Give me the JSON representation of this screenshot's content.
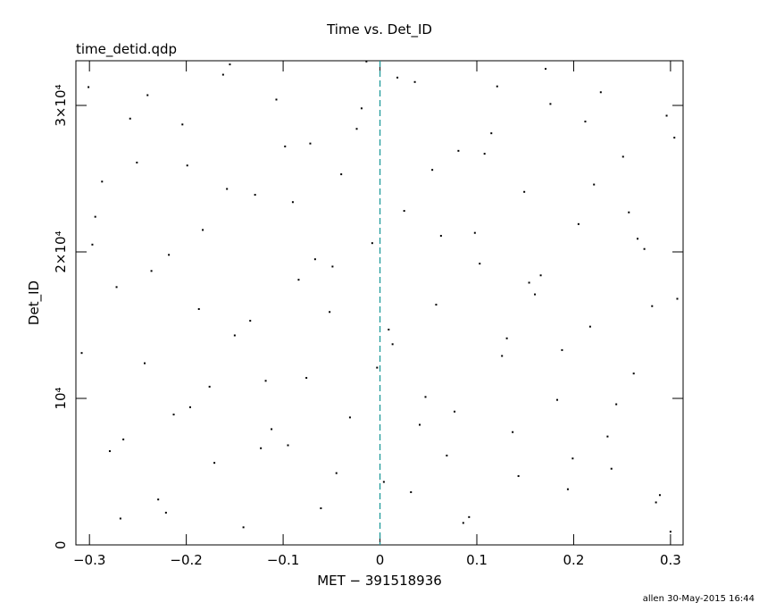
{
  "chart_data": {
    "type": "scatter",
    "title": "Time vs. Det_ID",
    "subtitle": "time_detid.qdp",
    "xlabel": "MET − 391518936",
    "ylabel": "Det_ID",
    "footer": "allen 30-May-2015 16:44",
    "color": "#000000",
    "xlim": [
      -0.314,
      0.313
    ],
    "ylim": [
      0,
      33050
    ],
    "xticks": [
      {
        "value": -0.3,
        "label": "−0.3"
      },
      {
        "value": -0.2,
        "label": "−0.2"
      },
      {
        "value": -0.1,
        "label": "−0.1"
      },
      0,
      0.1,
      0.2,
      0.3
    ],
    "yticks": [
      0,
      {
        "value": 10000,
        "label": "10⁴"
      },
      {
        "value": 20000,
        "label": "2×10⁴"
      },
      {
        "value": 30000,
        "label": "3×10⁴"
      }
    ],
    "vline": {
      "x": 0,
      "color": "#1f9a9a"
    },
    "x": [
      -0.301,
      -0.287,
      -0.272,
      -0.265,
      -0.251,
      -0.243,
      -0.229,
      -0.218,
      -0.204,
      -0.196,
      -0.183,
      -0.171,
      -0.162,
      -0.15,
      -0.141,
      -0.129,
      -0.118,
      -0.107,
      -0.095,
      -0.084,
      -0.072,
      -0.061,
      -0.052,
      -0.04,
      -0.031,
      -0.019,
      -0.008,
      0.004,
      0.013,
      0.025,
      0.036,
      0.047,
      0.058,
      0.069,
      0.081,
      0.092,
      0.103,
      0.115,
      0.126,
      0.137,
      0.149,
      0.16,
      0.171,
      0.183,
      0.194,
      0.205,
      0.217,
      0.228,
      0.239,
      0.251,
      0.262,
      0.273,
      0.285,
      0.296,
      0.307,
      -0.308,
      -0.294,
      -0.279,
      -0.258,
      -0.236,
      -0.221,
      -0.199,
      -0.176,
      -0.155,
      -0.134,
      -0.112,
      -0.09,
      -0.067,
      -0.045,
      -0.024,
      -0.003,
      0.018,
      0.041,
      0.063,
      0.086,
      0.108,
      0.131,
      0.154,
      0.176,
      0.199,
      0.221,
      0.244,
      0.266,
      0.289,
      0.304,
      -0.297,
      -0.268,
      -0.24,
      -0.213,
      -0.187,
      -0.158,
      -0.123,
      -0.098,
      -0.076,
      -0.049,
      -0.014,
      0.009,
      0.032,
      0.054,
      0.077,
      0.098,
      0.121,
      0.143,
      0.166,
      0.188,
      0.212,
      0.235,
      0.257,
      0.281,
      0.3
    ],
    "values": [
      31250,
      24800,
      17600,
      7200,
      26100,
      12400,
      3100,
      19800,
      28700,
      9400,
      21500,
      5600,
      32100,
      14300,
      1200,
      23900,
      11200,
      30400,
      6800,
      18100,
      27400,
      2500,
      15900,
      25300,
      8700,
      29800,
      20600,
      4300,
      13700,
      22800,
      31600,
      10100,
      16400,
      6100,
      26900,
      1900,
      19200,
      28100,
      12900,
      7700,
      24100,
      17100,
      32500,
      9900,
      3800,
      21900,
      14900,
      30900,
      5200,
      26500,
      11700,
      20200,
      2900,
      29300,
      16800,
      13100,
      22400,
      6400,
      29100,
      18700,
      2200,
      25900,
      10800,
      32800,
      15300,
      7900,
      23400,
      19500,
      4900,
      28400,
      12100,
      31900,
      8200,
      21100,
      1500,
      26700,
      14100,
      17900,
      30100,
      5900,
      24600,
      9600,
      20900,
      3400,
      27800,
      20500,
      1800,
      30700,
      8900,
      16100,
      24300,
      6600,
      27200,
      11400,
      19000,
      33000,
      14700,
      3600,
      25600,
      9100,
      21300,
      31300,
      4700,
      18400,
      13300,
      28900,
      7400,
      22700,
      16300,
      900
    ]
  }
}
